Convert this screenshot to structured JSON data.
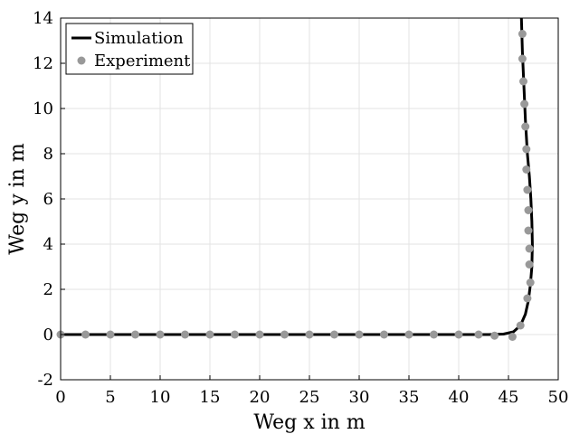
{
  "chart_data": {
    "type": "line",
    "title": "",
    "xlabel": "Weg x in m",
    "ylabel": "Weg y in m",
    "xlim": [
      0,
      50
    ],
    "ylim": [
      -2,
      14
    ],
    "xticks": [
      "0",
      "5",
      "10",
      "15",
      "20",
      "25",
      "30",
      "35",
      "40",
      "45",
      "50"
    ],
    "yticks": [
      "-2",
      "0",
      "2",
      "4",
      "6",
      "8",
      "10",
      "12",
      "14"
    ],
    "grid": true,
    "legend_position": "top-left",
    "series": [
      {
        "name": "Simulation",
        "style": "line",
        "color": "#000000",
        "x": [
          0,
          5,
          10,
          15,
          20,
          25,
          30,
          35,
          40,
          43,
          44.5,
          45.5,
          46.2,
          46.7,
          47.0,
          47.2,
          47.35,
          47.4,
          47.35,
          47.25,
          47.1,
          46.9,
          46.7,
          46.55,
          46.4,
          46.3
        ],
        "y": [
          0,
          0,
          0,
          0,
          0,
          0,
          0,
          0,
          0,
          0,
          0.02,
          0.12,
          0.4,
          0.9,
          1.5,
          2.2,
          3.0,
          4.0,
          5.0,
          6.0,
          7.0,
          8.0,
          9.5,
          11.0,
          12.5,
          14.0
        ]
      },
      {
        "name": "Experiment",
        "style": "marker",
        "color": "#999999",
        "x": [
          0,
          2.5,
          5,
          7.5,
          10,
          12.5,
          15,
          17.5,
          20,
          22.5,
          25,
          27.5,
          30,
          32.5,
          35,
          37.5,
          40,
          42,
          43.6,
          45.4,
          46.2,
          46.9,
          47.2,
          47.1,
          47.1,
          47.0,
          47.0,
          46.9,
          46.8,
          46.8,
          46.7,
          46.6,
          46.5,
          46.4,
          46.4
        ],
        "y": [
          0,
          0,
          0,
          0,
          0,
          0,
          0,
          0,
          0,
          0,
          0,
          0,
          0,
          0,
          0,
          0,
          0,
          0,
          -0.05,
          -0.1,
          0.4,
          1.6,
          2.3,
          3.1,
          3.8,
          4.6,
          5.5,
          6.4,
          7.3,
          8.2,
          9.2,
          10.2,
          11.2,
          12.2,
          13.3
        ]
      }
    ]
  }
}
